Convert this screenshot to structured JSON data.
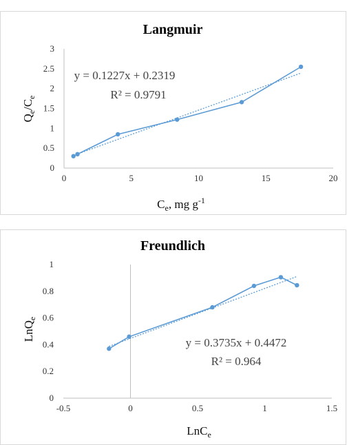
{
  "chart_data": [
    {
      "type": "line",
      "title": "Langmuir",
      "xlabel": {
        "main": "C",
        "sub": "e",
        "rest": ", mg g",
        "sup": "-1"
      },
      "ylabel": {
        "p1": "Q",
        "s1": "e",
        "p2": "/C",
        "s2": "e"
      },
      "xlim": [
        0,
        20
      ],
      "ylim": [
        0,
        3
      ],
      "xticks": [
        "0",
        "5",
        "10",
        "15",
        "20"
      ],
      "yticks": [
        "0",
        "0.5",
        "1",
        "1.5",
        "2",
        "2.5",
        "3"
      ],
      "grid": false,
      "series": [
        {
          "values": [
            [
              0.7,
              0.3
            ],
            [
              1.0,
              0.35
            ],
            [
              4.0,
              0.85
            ],
            [
              8.4,
              1.22
            ],
            [
              13.2,
              1.66
            ],
            [
              17.6,
              2.55
            ]
          ],
          "color": "#5b9bd5"
        }
      ],
      "trendline": {
        "slope": 0.1227,
        "intercept": 0.2319,
        "color": "#5b9bd5"
      },
      "equation": "y = 0.1227x + 0.2319",
      "r2": "R² = 0.9791"
    },
    {
      "type": "line",
      "title": "Freundlich",
      "xlabel": {
        "main": "LnC",
        "sub": "e"
      },
      "ylabel": {
        "p1": "LnQ",
        "s1": "e"
      },
      "xlim": [
        -0.5,
        1.5
      ],
      "ylim": [
        0,
        1
      ],
      "xticks": [
        "-0.5",
        "0",
        "0.5",
        "1",
        "1.5"
      ],
      "yticks": [
        "0",
        "0.2",
        "0.4",
        "0.6",
        "0.8",
        "1"
      ],
      "grid": false,
      "series": [
        {
          "values": [
            [
              -0.16,
              0.37
            ],
            [
              -0.01,
              0.46
            ],
            [
              0.61,
              0.68
            ],
            [
              0.92,
              0.84
            ],
            [
              1.12,
              0.905
            ],
            [
              1.24,
              0.845
            ]
          ],
          "color": "#5b9bd5"
        }
      ],
      "trendline": {
        "slope": 0.3735,
        "intercept": 0.4472,
        "color": "#5b9bd5"
      },
      "equation": "y = 0.3735x + 0.4472",
      "r2": "R² = 0.964"
    }
  ]
}
